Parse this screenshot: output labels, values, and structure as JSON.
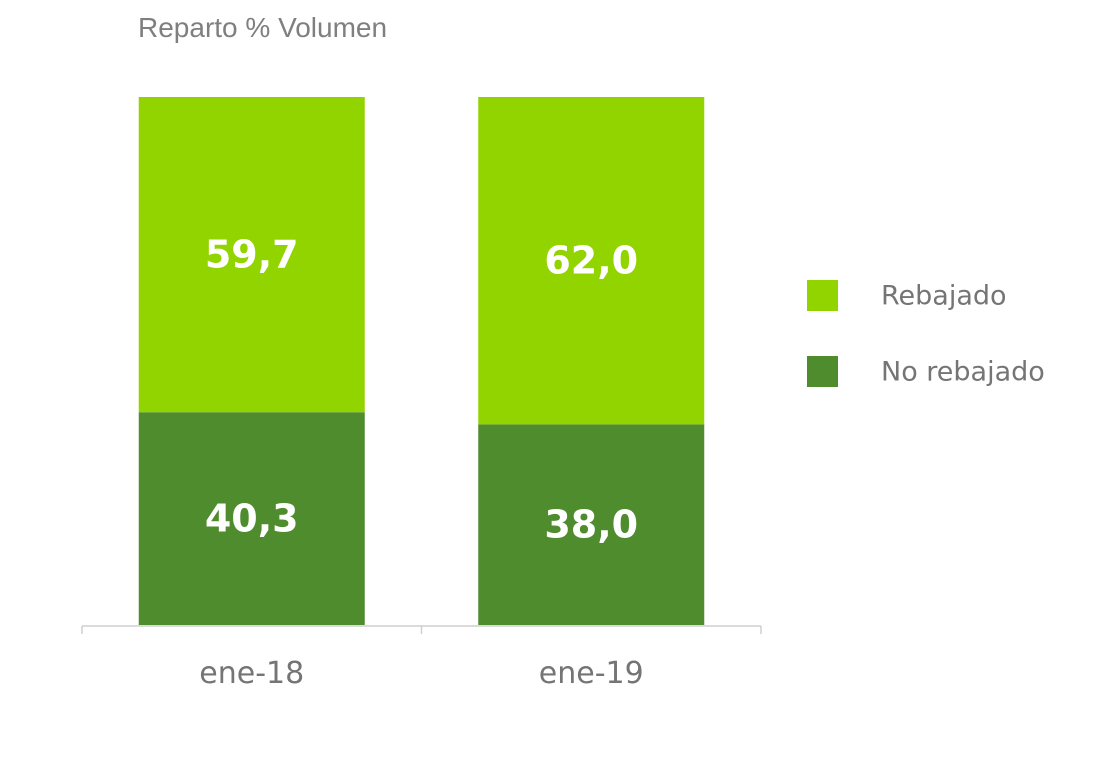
{
  "chart_data": {
    "type": "bar",
    "stacked": true,
    "title": "Reparto % Volumen",
    "categories": [
      "ene-18",
      "ene-19"
    ],
    "series": [
      {
        "name": "No rebajado",
        "values": [
          40.3,
          38.0
        ],
        "labels": [
          "40,3",
          "38,0"
        ],
        "color": "#4e8c2e"
      },
      {
        "name": "Rebajado",
        "values": [
          59.7,
          62.0
        ],
        "labels": [
          "59,7",
          "62,0"
        ],
        "color": "#92d400"
      }
    ],
    "ylim": [
      0,
      100
    ],
    "grid": false,
    "legend": "right",
    "legend_order": [
      "Rebajado",
      "No rebajado"
    ]
  }
}
